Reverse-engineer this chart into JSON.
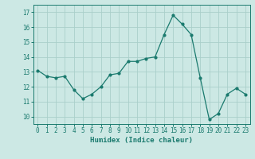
{
  "x": [
    0,
    1,
    2,
    3,
    4,
    5,
    6,
    7,
    8,
    9,
    10,
    11,
    12,
    13,
    14,
    15,
    16,
    17,
    18,
    19,
    20,
    21,
    22,
    23
  ],
  "y": [
    13.1,
    12.7,
    12.6,
    12.7,
    11.8,
    11.2,
    11.5,
    12.0,
    12.8,
    12.9,
    13.7,
    13.7,
    13.9,
    14.0,
    15.5,
    16.8,
    16.2,
    15.5,
    12.6,
    9.8,
    10.2,
    11.5,
    11.9,
    11.5
  ],
  "line_color": "#1a7a6e",
  "marker": "o",
  "marker_size": 2.0,
  "bg_color": "#cce8e4",
  "grid_color": "#aacfca",
  "xlabel": "Humidex (Indice chaleur)",
  "ylim": [
    9.5,
    17.5
  ],
  "xlim": [
    -0.5,
    23.5
  ],
  "yticks": [
    10,
    11,
    12,
    13,
    14,
    15,
    16,
    17
  ],
  "xticks": [
    0,
    1,
    2,
    3,
    4,
    5,
    6,
    7,
    8,
    9,
    10,
    11,
    12,
    13,
    14,
    15,
    16,
    17,
    18,
    19,
    20,
    21,
    22,
    23
  ],
  "tick_color": "#1a7a6e",
  "label_fontsize": 6.5,
  "tick_fontsize": 5.5,
  "spine_color": "#1a7a6e"
}
